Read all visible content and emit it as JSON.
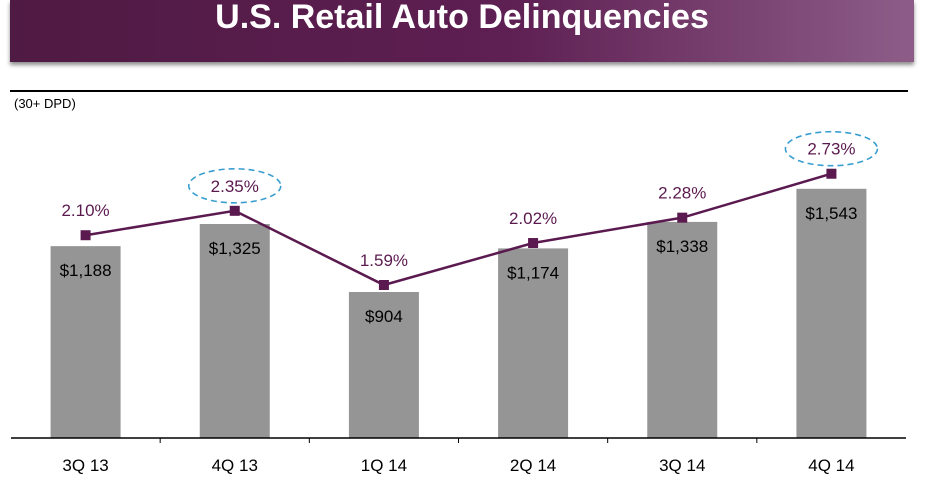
{
  "header": {
    "title": "U.S. Retail Auto Delinquencies"
  },
  "unit_note": "(30+ DPD)",
  "colors": {
    "banner": "#5e1f52",
    "bar": "#959595",
    "line": "#5b1a4f",
    "highlight": "#3a9fd0"
  },
  "chart_data": {
    "type": "bar",
    "categories": [
      "3Q 13",
      "4Q 13",
      "1Q 14",
      "2Q 14",
      "3Q 14",
      "4Q 14"
    ],
    "series": [
      {
        "type": "bar",
        "values": [
          1188,
          1325,
          904,
          1174,
          1338,
          1543
        ],
        "labels": [
          "$1,188",
          "$1,325",
          "$904",
          "$1,174",
          "$1,338",
          "$1,543"
        ]
      },
      {
        "type": "line",
        "values": [
          2.1,
          2.35,
          1.59,
          2.02,
          2.28,
          2.73
        ],
        "labels": [
          "2.10%",
          "2.35%",
          "1.59%",
          "2.02%",
          "2.28%",
          "2.73%"
        ]
      }
    ],
    "highlighted_categories": [
      "4Q 13",
      "4Q 14"
    ],
    "title": "U.S. Retail Auto Delinquencies",
    "ylabel": "(30+ DPD)",
    "grid": false
  }
}
